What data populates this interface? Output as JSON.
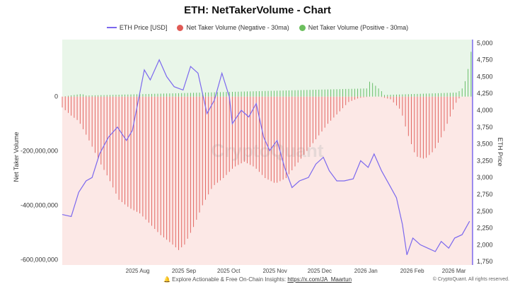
{
  "chart_data": {
    "type": "bar",
    "title": "ETH: NetTakerVolume - Chart",
    "ylabel_left": "Net Taker Volume",
    "ylabel_right": "ETH Price",
    "left_axis": {
      "min": -620000000,
      "max": 210000000,
      "ticks": [
        0,
        -200000000,
        -400000000,
        -600000000
      ],
      "tick_labels": [
        "0",
        "-200,000,000",
        "-400,000,000",
        "-600,000,000"
      ]
    },
    "right_axis": {
      "min": 1700,
      "max": 5050,
      "ticks": [
        1750,
        2000,
        2250,
        2500,
        2750,
        3000,
        3250,
        3500,
        3750,
        4000,
        4250,
        4500,
        4750,
        5000
      ],
      "tick_labels": [
        "1,750",
        "2,000",
        "2,250",
        "2,500",
        "2,750",
        "3,000",
        "3,250",
        "3,500",
        "3,750",
        "4,000",
        "4,250",
        "4,500",
        "4,750",
        "5,000"
      ]
    },
    "x_axis": {
      "start": "2025-06-20",
      "end": "2026-03-22",
      "ticks": [
        "2025-08-01",
        "2025-09-01",
        "2025-10-01",
        "2025-11-01",
        "2025-12-01",
        "2026-01-01",
        "2026-02-01",
        "2026-03-01"
      ],
      "tick_labels": [
        "2025 Aug",
        "2025 Sep",
        "2025 Oct",
        "2025 Nov",
        "2025 Dec",
        "2026 Jan",
        "2026 Feb",
        "2026 Mar"
      ]
    },
    "series": [
      {
        "name": "ETH Price [USD]",
        "type": "line",
        "color": "#7b68ee",
        "points": [
          [
            "2025-06-20",
            2450
          ],
          [
            "2025-06-26",
            2420
          ],
          [
            "2025-07-01",
            2780
          ],
          [
            "2025-07-06",
            2950
          ],
          [
            "2025-07-10",
            3000
          ],
          [
            "2025-07-15",
            3350
          ],
          [
            "2025-07-21",
            3600
          ],
          [
            "2025-07-27",
            3750
          ],
          [
            "2025-08-02",
            3550
          ],
          [
            "2025-08-06",
            3700
          ],
          [
            "2025-08-10",
            4150
          ],
          [
            "2025-08-14",
            4600
          ],
          [
            "2025-08-18",
            4450
          ],
          [
            "2025-08-24",
            4750
          ],
          [
            "2025-08-29",
            4500
          ],
          [
            "2025-09-03",
            4350
          ],
          [
            "2025-09-09",
            4300
          ],
          [
            "2025-09-14",
            4650
          ],
          [
            "2025-09-19",
            4550
          ],
          [
            "2025-09-25",
            3950
          ],
          [
            "2025-09-30",
            4150
          ],
          [
            "2025-10-05",
            4550
          ],
          [
            "2025-10-10",
            4200
          ],
          [
            "2025-10-12",
            3800
          ],
          [
            "2025-10-18",
            4000
          ],
          [
            "2025-10-23",
            3900
          ],
          [
            "2025-10-28",
            4100
          ],
          [
            "2025-11-02",
            3600
          ],
          [
            "2025-11-06",
            3400
          ],
          [
            "2025-11-11",
            3550
          ],
          [
            "2025-11-16",
            3150
          ],
          [
            "2025-11-21",
            2850
          ],
          [
            "2025-11-26",
            2950
          ],
          [
            "2025-12-02",
            3000
          ],
          [
            "2025-12-07",
            3200
          ],
          [
            "2025-12-12",
            3300
          ],
          [
            "2025-12-16",
            3100
          ],
          [
            "2025-12-21",
            2950
          ],
          [
            "2025-12-26",
            2950
          ],
          [
            "2026-01-01",
            2980
          ],
          [
            "2026-01-06",
            3250
          ],
          [
            "2026-01-11",
            3150
          ],
          [
            "2026-01-15",
            3350
          ],
          [
            "2026-01-20",
            3100
          ],
          [
            "2026-01-25",
            2900
          ],
          [
            "2026-01-30",
            2700
          ],
          [
            "2026-02-03",
            2300
          ],
          [
            "2026-02-06",
            1850
          ],
          [
            "2026-02-10",
            2100
          ],
          [
            "2026-02-15",
            2000
          ],
          [
            "2026-02-20",
            1950
          ],
          [
            "2026-02-25",
            1900
          ],
          [
            "2026-03-01",
            2050
          ],
          [
            "2026-03-06",
            1950
          ],
          [
            "2026-03-10",
            2100
          ],
          [
            "2026-03-15",
            2150
          ],
          [
            "2026-03-20",
            2350
          ]
        ]
      },
      {
        "name": "Net Taker Volume (Negative - 30ma)",
        "type": "bar",
        "color": "#d9534f",
        "points": [
          [
            "2025-06-20",
            -40000000
          ],
          [
            "2025-06-26",
            -70000000
          ],
          [
            "2025-07-01",
            -90000000
          ],
          [
            "2025-07-07",
            -150000000
          ],
          [
            "2025-07-14",
            -230000000
          ],
          [
            "2025-07-21",
            -300000000
          ],
          [
            "2025-07-28",
            -380000000
          ],
          [
            "2025-08-04",
            -410000000
          ],
          [
            "2025-08-11",
            -430000000
          ],
          [
            "2025-08-18",
            -470000000
          ],
          [
            "2025-08-25",
            -510000000
          ],
          [
            "2025-09-01",
            -540000000
          ],
          [
            "2025-09-06",
            -565000000
          ],
          [
            "2025-09-10",
            -545000000
          ],
          [
            "2025-09-16",
            -480000000
          ],
          [
            "2025-09-22",
            -400000000
          ],
          [
            "2025-09-29",
            -330000000
          ],
          [
            "2025-10-06",
            -300000000
          ],
          [
            "2025-10-13",
            -260000000
          ],
          [
            "2025-10-20",
            -240000000
          ],
          [
            "2025-10-27",
            -260000000
          ],
          [
            "2025-11-03",
            -300000000
          ],
          [
            "2025-11-10",
            -320000000
          ],
          [
            "2025-11-17",
            -300000000
          ],
          [
            "2025-11-24",
            -250000000
          ],
          [
            "2025-12-01",
            -200000000
          ],
          [
            "2025-12-08",
            -150000000
          ],
          [
            "2025-12-15",
            -100000000
          ],
          [
            "2025-12-22",
            -60000000
          ],
          [
            "2025-12-29",
            -20000000
          ],
          [
            "2026-01-05",
            -5000000
          ],
          [
            "2026-01-12",
            0
          ],
          [
            "2026-01-19",
            0
          ],
          [
            "2026-01-26",
            -10000000
          ],
          [
            "2026-02-02",
            -50000000
          ],
          [
            "2026-02-06",
            -130000000
          ],
          [
            "2026-02-12",
            -220000000
          ],
          [
            "2026-02-18",
            -230000000
          ],
          [
            "2026-02-24",
            -200000000
          ],
          [
            "2026-03-02",
            -140000000
          ],
          [
            "2026-03-08",
            -60000000
          ],
          [
            "2026-03-12",
            -10000000
          ],
          [
            "2026-03-15",
            0
          ]
        ]
      },
      {
        "name": "Net Taker Volume (Positive - 30ma)",
        "type": "bar",
        "color": "#5cb85c",
        "points": [
          [
            "2025-06-20",
            0
          ],
          [
            "2025-07-03",
            10000000
          ],
          [
            "2025-07-06",
            4000000
          ],
          [
            "2026-01-10",
            30000000
          ],
          [
            "2026-01-12",
            55000000
          ],
          [
            "2026-01-14",
            50000000
          ],
          [
            "2026-01-17",
            35000000
          ],
          [
            "2026-01-20",
            20000000
          ],
          [
            "2026-01-22",
            6000000
          ],
          [
            "2026-03-12",
            15000000
          ],
          [
            "2026-03-15",
            30000000
          ],
          [
            "2026-03-18",
            70000000
          ],
          [
            "2026-03-21",
            165000000
          ]
        ]
      }
    ]
  },
  "legend": [
    {
      "label": "ETH Price [USD]",
      "color": "#7b68ee"
    },
    {
      "label": "Net Taker Volume (Negative - 30ma)",
      "color": "#e05a55"
    },
    {
      "label": "Net Taker Volume (Positive - 30ma)",
      "color": "#6cbf5e"
    }
  ],
  "watermark": "CryptoQuant",
  "footer": {
    "prefix": "🔔 Explore Actionable & Free On-Chain Insights:",
    "link": "https://x.com/JA_Maartun"
  },
  "copyright": "© CryptoQuant. All rights reserved."
}
